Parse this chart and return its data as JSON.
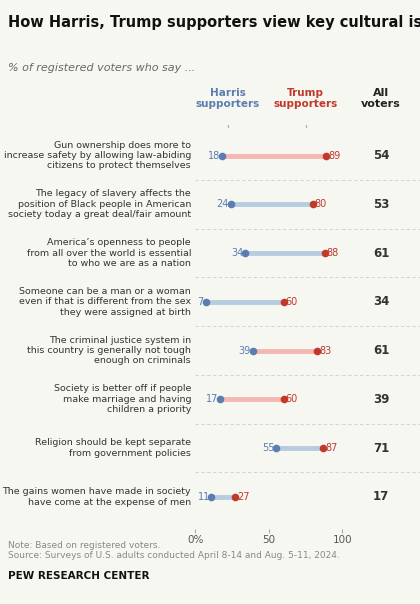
{
  "title": "How Harris, Trump supporters view key cultural issues",
  "subtitle": "% of registered voters who say ...",
  "harris_color": "#5b7db1",
  "trump_color": "#c0392b",
  "line_color_trump_leads": "#f4b8b0",
  "line_color_harris_leads": "#b8cce0",
  "background_color": "#f7f7f2",
  "right_panel_color": "#eaeae4",
  "categories": [
    "Gun ownership does more to\nincrease safety by allowing law-abiding\ncitizens to protect themselves",
    "The legacy of slavery affects the\nposition of Black people in American\nsociety today a great deal/fair amount",
    "America’s openness to people\nfrom all over the world is essential\nto who we are as a nation",
    "Someone can be a man or a woman\neven if that is different from the sex\nthey were assigned at birth",
    "The criminal justice system in\nthis country is generally not tough\nenough on criminals",
    "Society is better off if people\nmake marriage and having\nchildren a priority",
    "Religion should be kept separate\nfrom government policies",
    "The gains women have made in society\nhave come at the expense of men"
  ],
  "harris_values": [
    18,
    24,
    34,
    7,
    39,
    17,
    55,
    11
  ],
  "trump_values": [
    89,
    80,
    88,
    60,
    83,
    60,
    87,
    27
  ],
  "all_voters": [
    54,
    53,
    61,
    34,
    61,
    39,
    71,
    17
  ],
  "trump_higher": [
    true,
    false,
    false,
    false,
    true,
    true,
    false,
    false
  ],
  "note": "Note: Based on registered voters.",
  "source": "Source: Surveys of U.S. adults conducted April 8-14 and Aug. 5-11, 2024.",
  "branding": "PEW RESEARCH CENTER",
  "harris_header": "Harris\nsupporters",
  "trump_header": "Trump\nsupporters",
  "all_header": "All\nvoters"
}
